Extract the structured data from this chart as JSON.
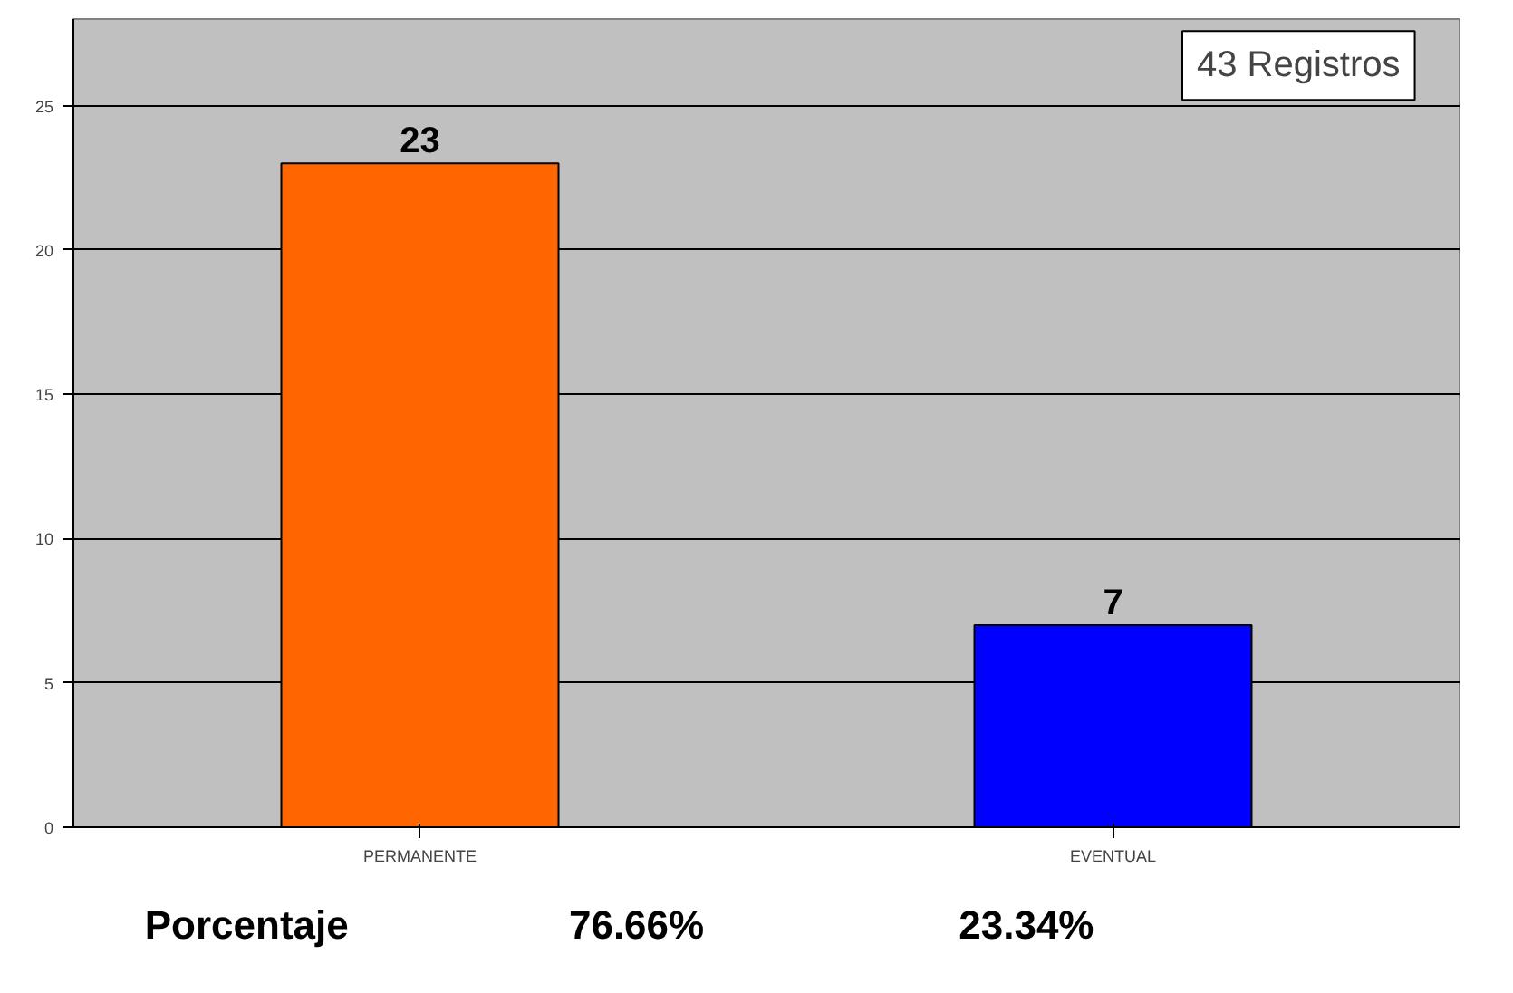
{
  "chart_data": {
    "type": "bar",
    "categories": [
      "PERMANENTE",
      "EVENTUAL"
    ],
    "values": [
      23,
      7
    ],
    "colors": [
      "#ff6600",
      "#0000ff"
    ],
    "ylim": [
      0,
      28
    ],
    "yticks": [
      0,
      5,
      10,
      15,
      20,
      25
    ],
    "grid": "y",
    "data_labels": true,
    "annotations": [
      "43 Registros",
      "Porcentaje",
      "76.66%",
      "23.34%"
    ]
  }
}
